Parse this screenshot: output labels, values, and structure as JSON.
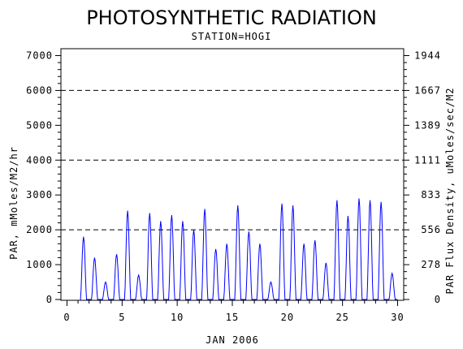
{
  "chart_data": {
    "type": "line",
    "title": "PHOTOSYNTHETIC RADIATION",
    "subtitle": "STATION=HOGI",
    "xlabel": "JAN 2006",
    "ylabel": "PAR, mMoles/M2/hr",
    "y2label": "PAR Flux Density, uMoles/sec/M2",
    "xlim": [
      0,
      30
    ],
    "ylim": [
      0,
      7000
    ],
    "x_ticks": [
      "0",
      "5",
      "10",
      "15",
      "20",
      "25",
      "30"
    ],
    "y_ticks": [
      "0",
      "1000",
      "2000",
      "3000",
      "4000",
      "5000",
      "6000",
      "7000"
    ],
    "y2_ticks": [
      "0",
      "278",
      "556",
      "833",
      "1111",
      "1389",
      "1667",
      "1944"
    ],
    "reference_lines": [
      2000,
      4000,
      6000
    ],
    "line_color": "#0000ff",
    "series": [
      {
        "daily_peaks": [
          {
            "day": 1.5,
            "peak": 1800
          },
          {
            "day": 2.5,
            "peak": 1200
          },
          {
            "day": 3.5,
            "peak": 500
          },
          {
            "day": 4.5,
            "peak": 1300
          },
          {
            "day": 5.5,
            "peak": 2550
          },
          {
            "day": 6.5,
            "peak": 700
          },
          {
            "day": 7.5,
            "peak": 2480
          },
          {
            "day": 8.5,
            "peak": 2250
          },
          {
            "day": 9.5,
            "peak": 2420
          },
          {
            "day": 10.5,
            "peak": 2250
          },
          {
            "day": 11.5,
            "peak": 2000
          },
          {
            "day": 12.5,
            "peak": 2600
          },
          {
            "day": 13.5,
            "peak": 1450
          },
          {
            "day": 14.5,
            "peak": 1600
          },
          {
            "day": 15.5,
            "peak": 2700
          },
          {
            "day": 16.5,
            "peak": 1950
          },
          {
            "day": 17.5,
            "peak": 1600
          },
          {
            "day": 18.5,
            "peak": 500
          },
          {
            "day": 19.5,
            "peak": 2750
          },
          {
            "day": 20.5,
            "peak": 2700
          },
          {
            "day": 21.5,
            "peak": 1600
          },
          {
            "day": 22.5,
            "peak": 1700
          },
          {
            "day": 23.5,
            "peak": 1050
          },
          {
            "day": 24.5,
            "peak": 2850
          },
          {
            "day": 25.5,
            "peak": 2400
          },
          {
            "day": 26.5,
            "peak": 2900
          },
          {
            "day": 27.5,
            "peak": 2850
          },
          {
            "day": 28.5,
            "peak": 2800
          },
          {
            "day": 29.5,
            "peak": 750
          }
        ]
      }
    ]
  }
}
